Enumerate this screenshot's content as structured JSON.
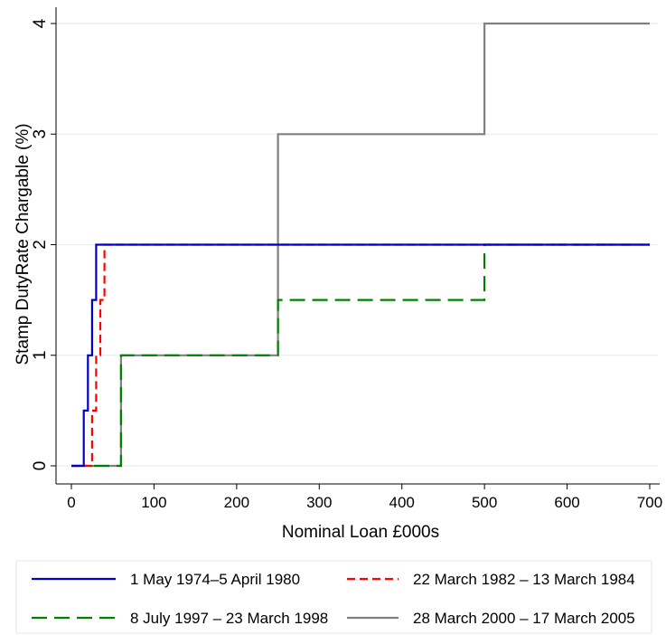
{
  "chart_data": {
    "type": "line",
    "step": true,
    "title": "",
    "xlabel": "Nominal Loan £000s",
    "ylabel": "Stamp DutyRate Chargable (%)",
    "xlim": [
      0,
      700
    ],
    "ylim": [
      0,
      4
    ],
    "xticks": [
      0,
      100,
      200,
      300,
      400,
      500,
      600,
      700
    ],
    "yticks": [
      0,
      1,
      2,
      3,
      4
    ],
    "xtick_labels": [
      "0",
      "100",
      "200",
      "300",
      "400",
      "500",
      "600",
      "700"
    ],
    "ytick_labels": [
      "0",
      "1",
      "2",
      "3",
      "4"
    ],
    "grid": "horizontal",
    "legend_position": "bottom",
    "series": [
      {
        "name": "1 May 1974–5 April 1980",
        "color": "#0000cc",
        "dash": "solid",
        "x": [
          0,
          15,
          15,
          20,
          20,
          25,
          25,
          30,
          30,
          700
        ],
        "y": [
          0,
          0,
          0.5,
          0.5,
          1,
          1,
          1.5,
          1.5,
          2,
          2
        ]
      },
      {
        "name": "22 March 1982 – 13 March 1984",
        "color": "#ff0000",
        "dash": "short",
        "x": [
          0,
          25,
          25,
          30,
          30,
          35,
          35,
          40,
          40,
          700
        ],
        "y": [
          0,
          0,
          0.5,
          0.5,
          1,
          1,
          1.5,
          1.5,
          2,
          2
        ]
      },
      {
        "name": "8 July 1997 – 23 March 1998",
        "color": "#008000",
        "dash": "long",
        "x": [
          0,
          60,
          60,
          250,
          250,
          500,
          500,
          700
        ],
        "y": [
          0,
          0,
          1,
          1,
          1.5,
          1.5,
          2,
          2
        ]
      },
      {
        "name": "28 March 2000 – 17 March 2005",
        "color": "#808080",
        "dash": "solid",
        "x": [
          0,
          60,
          60,
          250,
          250,
          500,
          500,
          700
        ],
        "y": [
          0,
          0,
          1,
          1,
          3,
          3,
          4,
          4
        ]
      }
    ]
  }
}
